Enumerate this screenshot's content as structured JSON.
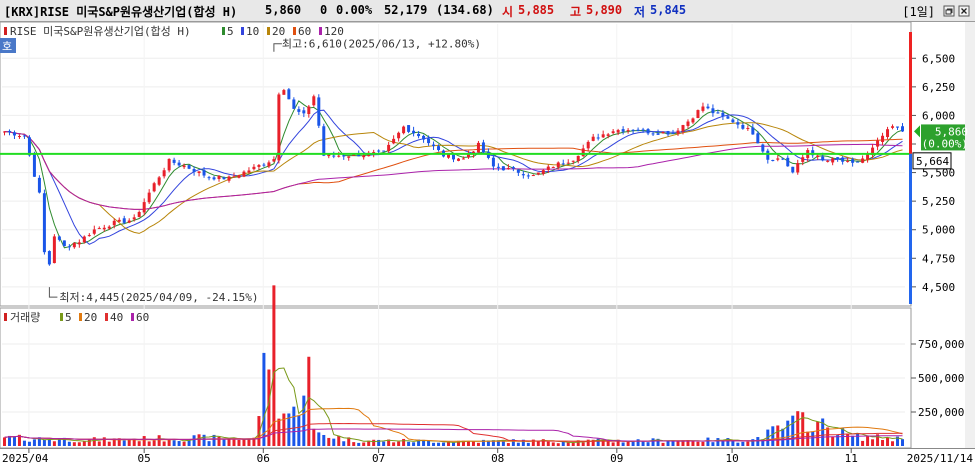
{
  "header": {
    "code": "[KRX]RISE 미국S&P원유생산기업(합성 H)",
    "price": "5,860",
    "change": "0",
    "change_pct": "0.00%",
    "volume": "52,179",
    "volume_ratio": "(134.68)",
    "open_label": "시",
    "open": "5,885",
    "high_label": "고",
    "high": "5,890",
    "low_label": "저",
    "low": "5,845",
    "period": "[1일]"
  },
  "icons": {
    "restore": "restore-icon",
    "close": "close-icon"
  },
  "price_legend": {
    "name": "RISE 미국S&P원유생산기업(합성 H)",
    "ma": [
      {
        "label": "5",
        "color": "#2e8b2e"
      },
      {
        "label": "10",
        "color": "#3344dd"
      },
      {
        "label": "20",
        "color": "#b8860b"
      },
      {
        "label": "60",
        "color": "#e05010"
      },
      {
        "label": "120",
        "color": "#aa22aa"
      }
    ]
  },
  "side_tab": "호",
  "volume_legend": {
    "name": "거래량",
    "ma": [
      {
        "label": "5",
        "color": "#7a9a1a"
      },
      {
        "label": "20",
        "color": "#e07a10"
      },
      {
        "label": "40",
        "color": "#e03030"
      },
      {
        "label": "60",
        "color": "#aa22aa"
      }
    ]
  },
  "annotations": {
    "high": "최고:6,610(2025/06/13, +12.80%)",
    "low": "최저:4,445(2025/04/09, -24.15%)"
  },
  "last_price_box": {
    "price": "5,860",
    "pct": "(0.00%)"
  },
  "ref_line_box": "5,664",
  "chart_data": {
    "type": "candlestick",
    "start_date": "2025-03-25",
    "end_date": "2025-11-14",
    "x_ticks": [
      "2025/04",
      "05",
      "06",
      "07",
      "08",
      "09",
      "10",
      "11",
      "2025/11/14"
    ],
    "y_ticks": [
      "6,500",
      "6,250",
      "6,000",
      "5,750",
      "5,500",
      "5,250",
      "5,000",
      "4,750",
      "4,500"
    ],
    "y_tick_values": [
      6500,
      6250,
      6000,
      5750,
      5500,
      5250,
      5000,
      4750,
      4500
    ],
    "ylim": [
      4350,
      6800
    ],
    "reference_line": 5664,
    "last_price": 5860,
    "close_anchors": [
      [
        0,
        5860
      ],
      [
        4,
        5820
      ],
      [
        7,
        5310
      ],
      [
        8,
        4800
      ],
      [
        9,
        4700
      ],
      [
        10,
        4950
      ],
      [
        12,
        4850
      ],
      [
        15,
        4900
      ],
      [
        18,
        5000
      ],
      [
        22,
        5060
      ],
      [
        26,
        5090
      ],
      [
        30,
        5400
      ],
      [
        33,
        5600
      ],
      [
        36,
        5560
      ],
      [
        41,
        5460
      ],
      [
        45,
        5450
      ],
      [
        50,
        5540
      ],
      [
        54,
        5620
      ],
      [
        55,
        6200
      ],
      [
        56,
        6240
      ],
      [
        58,
        6050
      ],
      [
        60,
        6000
      ],
      [
        62,
        6170
      ],
      [
        64,
        5650
      ],
      [
        68,
        5650
      ],
      [
        72,
        5660
      ],
      [
        76,
        5670
      ],
      [
        80,
        5900
      ],
      [
        84,
        5800
      ],
      [
        88,
        5650
      ],
      [
        92,
        5620
      ],
      [
        95,
        5740
      ],
      [
        98,
        5550
      ],
      [
        102,
        5520
      ],
      [
        106,
        5470
      ],
      [
        110,
        5560
      ],
      [
        114,
        5620
      ],
      [
        118,
        5800
      ],
      [
        122,
        5870
      ],
      [
        126,
        5880
      ],
      [
        130,
        5850
      ],
      [
        134,
        5850
      ],
      [
        137,
        5950
      ],
      [
        140,
        6080
      ],
      [
        143,
        6000
      ],
      [
        146,
        5950
      ],
      [
        150,
        5850
      ],
      [
        153,
        5620
      ],
      [
        156,
        5620
      ],
      [
        158,
        5500
      ],
      [
        161,
        5700
      ],
      [
        164,
        5600
      ],
      [
        167,
        5610
      ],
      [
        170,
        5570
      ],
      [
        173,
        5650
      ],
      [
        176,
        5820
      ],
      [
        178,
        5900
      ],
      [
        180,
        5860
      ]
    ],
    "volume_y_ticks": [
      "750,000",
      "500,000",
      "250,000"
    ],
    "volume_y_tick_values": [
      750000,
      500000,
      250000
    ],
    "volume_ylim": [
      0,
      1000000
    ],
    "volume_anchors": [
      [
        0,
        60000
      ],
      [
        10,
        50000
      ],
      [
        20,
        45000
      ],
      [
        30,
        55000
      ],
      [
        40,
        60000
      ],
      [
        50,
        50000
      ],
      [
        54,
        980000
      ],
      [
        55,
        330000
      ],
      [
        56,
        250000
      ],
      [
        58,
        230000
      ],
      [
        60,
        490000
      ],
      [
        61,
        560000
      ],
      [
        62,
        100000
      ],
      [
        70,
        40000
      ],
      [
        90,
        35000
      ],
      [
        120,
        38000
      ],
      [
        150,
        45000
      ],
      [
        155,
        120000
      ],
      [
        160,
        200000
      ],
      [
        170,
        70000
      ],
      [
        180,
        52000
      ]
    ]
  }
}
